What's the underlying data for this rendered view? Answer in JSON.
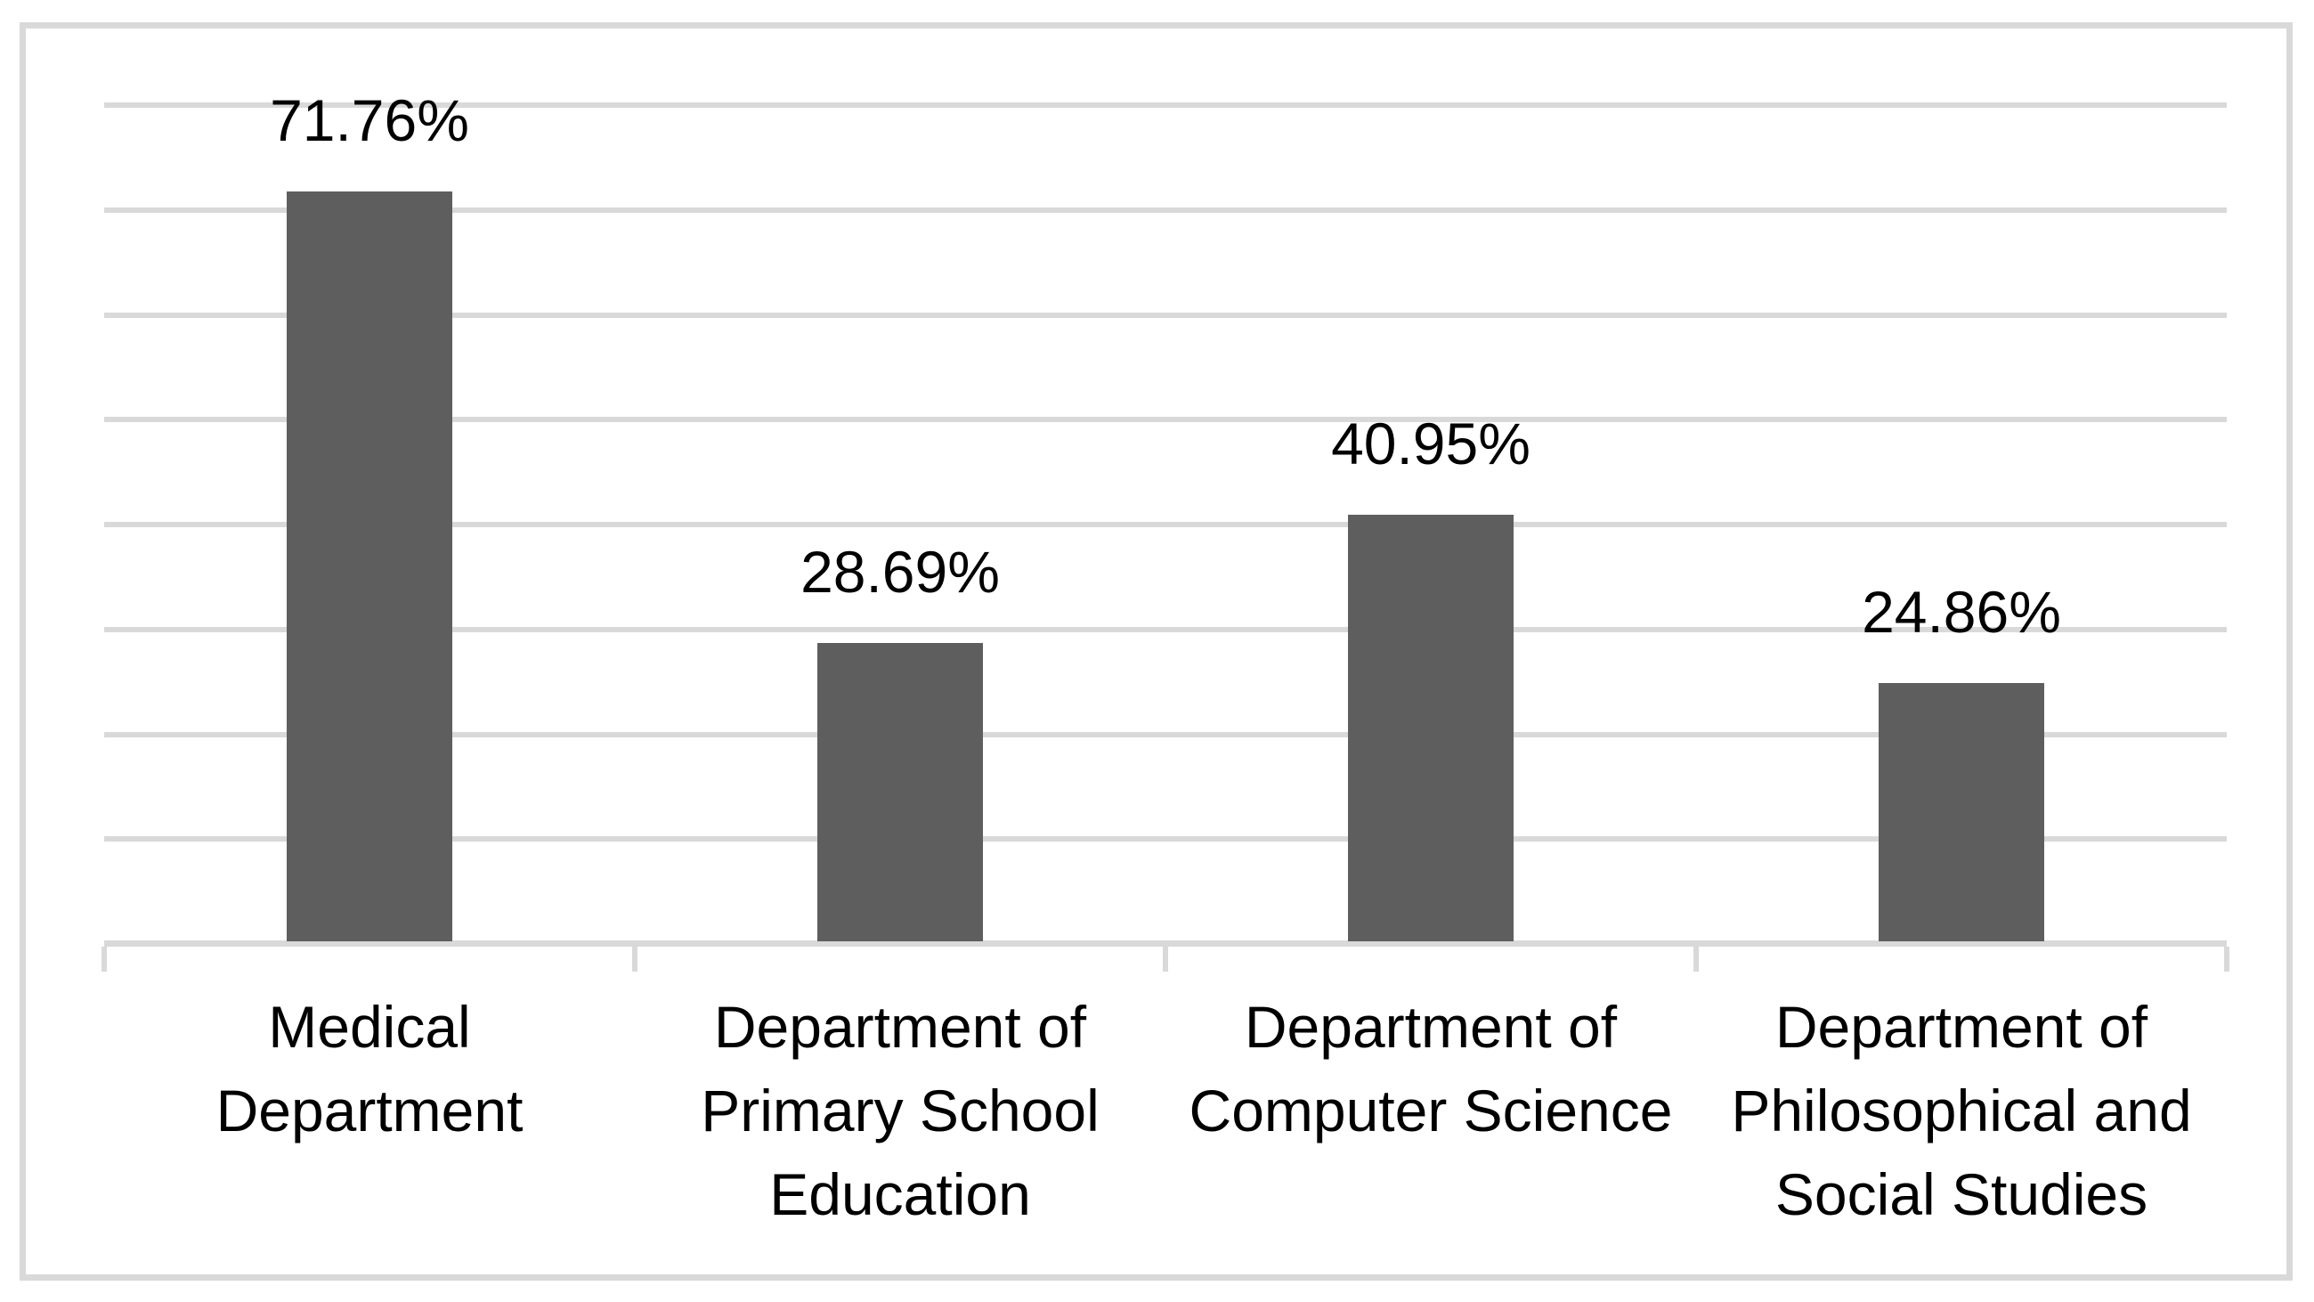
{
  "chart_data": {
    "type": "bar",
    "title": "",
    "xlabel": "",
    "ylabel": "",
    "categories": [
      "Medical Department",
      "Department of Primary School Education",
      "Department of Computer Science",
      "Department of Philosophical and Social Studies"
    ],
    "categories_lines": [
      [
        "Medical",
        "Department"
      ],
      [
        "Department of",
        "Primary School",
        "Education"
      ],
      [
        "Department of",
        "Computer Science"
      ],
      [
        "Department of",
        "Philosophical and",
        "Social Studies"
      ]
    ],
    "values": [
      71.76,
      28.69,
      40.95,
      24.86
    ],
    "data_labels": [
      "71.76%",
      "28.69%",
      "40.95%",
      "24.86%"
    ],
    "ylim": [
      0,
      80
    ],
    "grid_step": 10,
    "grid": true,
    "legend": false,
    "y_axis_tick_labels_visible": false,
    "colors": {
      "bar": "#5e5e5e",
      "gridline": "#d9d9d9",
      "axis_line": "#d9d9d9",
      "tick": "#d9d9d9",
      "frame_border": "#d9d9d9",
      "label_text": "#000000",
      "background": "#ffffff"
    }
  }
}
